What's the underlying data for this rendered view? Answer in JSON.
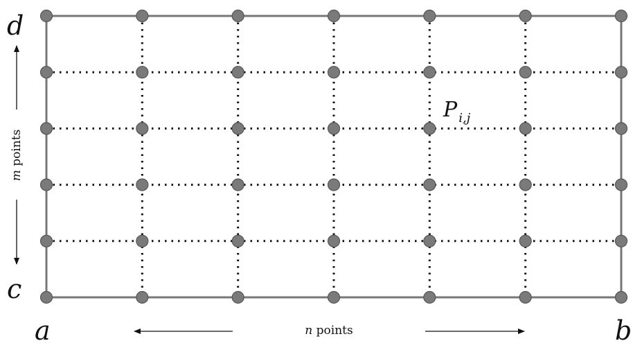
{
  "diagram": {
    "corners": {
      "a": "a",
      "b": "b",
      "c": "c",
      "d": "d"
    },
    "n_label": {
      "var": "n",
      "text": " points"
    },
    "m_label": {
      "var": "m",
      "text": " points"
    },
    "point_label": {
      "main": "P",
      "sub": "i,j"
    },
    "grid": {
      "columns": 7,
      "rows": 6
    },
    "colors": {
      "point_fill": "#7a7a7a",
      "point_stroke": "#555555",
      "border": "#777777",
      "dotted_line": "#111111"
    }
  }
}
